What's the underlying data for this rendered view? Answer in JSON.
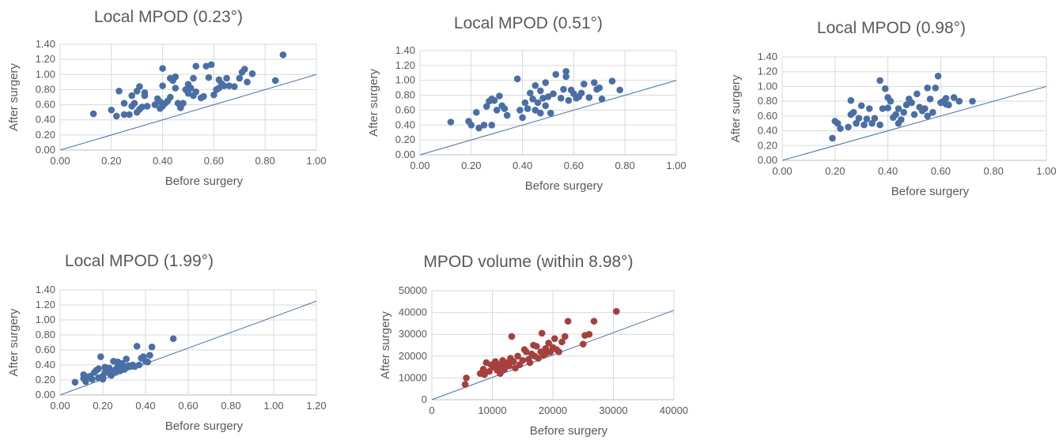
{
  "chart_data": [
    {
      "type": "scatter",
      "title": "Local MPOD (0.23°)",
      "xlabel": "Before surgery",
      "ylabel": "After surgery",
      "xlim": [
        0,
        1.0
      ],
      "ylim": [
        0,
        1.4
      ],
      "xticks": [
        0,
        0.2,
        0.4,
        0.6,
        0.8,
        1.0
      ],
      "yticks": [
        0,
        0.2,
        0.4,
        0.6,
        0.8,
        1.0,
        1.2,
        1.4
      ],
      "xtick_labels": [
        "0.00",
        "0.20",
        "0.40",
        "0.60",
        "0.80",
        "1.00"
      ],
      "ytick_labels": [
        "0.00",
        "0.20",
        "0.40",
        "0.60",
        "0.80",
        "1.00",
        "1.20",
        "1.40"
      ],
      "grid": true,
      "point_color": "#4a6fa5",
      "reference_line": [
        [
          0,
          0
        ],
        [
          1.0,
          1.0
        ]
      ],
      "points": [
        [
          0.13,
          0.48
        ],
        [
          0.2,
          0.53
        ],
        [
          0.22,
          0.45
        ],
        [
          0.23,
          0.78
        ],
        [
          0.25,
          0.62
        ],
        [
          0.25,
          0.47
        ],
        [
          0.27,
          0.47
        ],
        [
          0.28,
          0.72
        ],
        [
          0.28,
          0.58
        ],
        [
          0.29,
          0.62
        ],
        [
          0.3,
          0.5
        ],
        [
          0.3,
          0.78
        ],
        [
          0.31,
          0.54
        ],
        [
          0.31,
          0.84
        ],
        [
          0.32,
          0.57
        ],
        [
          0.33,
          0.72
        ],
        [
          0.33,
          0.76
        ],
        [
          0.34,
          0.58
        ],
        [
          0.37,
          0.6
        ],
        [
          0.38,
          0.68
        ],
        [
          0.39,
          0.64
        ],
        [
          0.39,
          0.55
        ],
        [
          0.4,
          0.85
        ],
        [
          0.4,
          1.08
        ],
        [
          0.4,
          0.58
        ],
        [
          0.41,
          0.62
        ],
        [
          0.42,
          0.65
        ],
        [
          0.43,
          0.7
        ],
        [
          0.43,
          0.95
        ],
        [
          0.44,
          0.92
        ],
        [
          0.45,
          0.97
        ],
        [
          0.45,
          0.82
        ],
        [
          0.46,
          0.62
        ],
        [
          0.47,
          0.56
        ],
        [
          0.48,
          0.62
        ],
        [
          0.49,
          0.8
        ],
        [
          0.5,
          0.87
        ],
        [
          0.5,
          0.75
        ],
        [
          0.51,
          0.82
        ],
        [
          0.52,
          0.72
        ],
        [
          0.52,
          0.95
        ],
        [
          0.53,
          1.11
        ],
        [
          0.53,
          0.77
        ],
        [
          0.55,
          0.69
        ],
        [
          0.56,
          0.71
        ],
        [
          0.57,
          1.11
        ],
        [
          0.58,
          0.96
        ],
        [
          0.59,
          1.13
        ],
        [
          0.6,
          0.73
        ],
        [
          0.61,
          0.8
        ],
        [
          0.62,
          0.82
        ],
        [
          0.62,
          0.93
        ],
        [
          0.63,
          0.88
        ],
        [
          0.64,
          0.85
        ],
        [
          0.65,
          0.95
        ],
        [
          0.66,
          0.85
        ],
        [
          0.68,
          0.84
        ],
        [
          0.7,
          0.95
        ],
        [
          0.71,
          1.03
        ],
        [
          0.72,
          1.07
        ],
        [
          0.73,
          0.9
        ],
        [
          0.75,
          1.01
        ],
        [
          0.84,
          0.92
        ],
        [
          0.87,
          1.26
        ]
      ]
    },
    {
      "type": "scatter",
      "title": "Local MPOD (0.51°)",
      "xlabel": "Before surgery",
      "ylabel": "After surgery",
      "xlim": [
        0,
        1.0
      ],
      "ylim": [
        0,
        1.4
      ],
      "xticks": [
        0,
        0.2,
        0.4,
        0.6,
        0.8,
        1.0
      ],
      "yticks": [
        0,
        0.2,
        0.4,
        0.6,
        0.8,
        1.0,
        1.2,
        1.4
      ],
      "xtick_labels": [
        "0.00",
        "0.20",
        "0.40",
        "0.60",
        "0.80",
        "1.00"
      ],
      "ytick_labels": [
        "0.00",
        "0.20",
        "0.40",
        "0.60",
        "0.80",
        "1.00",
        "1.20",
        "1.40"
      ],
      "grid": true,
      "point_color": "#4a6fa5",
      "reference_line": [
        [
          0,
          0
        ],
        [
          1.0,
          1.0
        ]
      ],
      "points": [
        [
          0.12,
          0.44
        ],
        [
          0.19,
          0.45
        ],
        [
          0.2,
          0.4
        ],
        [
          0.22,
          0.57
        ],
        [
          0.23,
          0.36
        ],
        [
          0.25,
          0.4
        ],
        [
          0.26,
          0.65
        ],
        [
          0.27,
          0.72
        ],
        [
          0.28,
          0.75
        ],
        [
          0.28,
          0.4
        ],
        [
          0.29,
          0.73
        ],
        [
          0.3,
          0.6
        ],
        [
          0.31,
          0.79
        ],
        [
          0.32,
          0.66
        ],
        [
          0.33,
          0.62
        ],
        [
          0.34,
          0.53
        ],
        [
          0.38,
          1.02
        ],
        [
          0.39,
          0.6
        ],
        [
          0.4,
          0.5
        ],
        [
          0.41,
          0.7
        ],
        [
          0.42,
          0.62
        ],
        [
          0.43,
          0.83
        ],
        [
          0.44,
          0.75
        ],
        [
          0.45,
          0.93
        ],
        [
          0.45,
          0.6
        ],
        [
          0.46,
          0.7
        ],
        [
          0.47,
          0.56
        ],
        [
          0.47,
          0.86
        ],
        [
          0.48,
          0.76
        ],
        [
          0.49,
          0.97
        ],
        [
          0.49,
          0.66
        ],
        [
          0.5,
          0.78
        ],
        [
          0.51,
          0.56
        ],
        [
          0.52,
          0.82
        ],
        [
          0.53,
          1.08
        ],
        [
          0.55,
          0.76
        ],
        [
          0.56,
          0.88
        ],
        [
          0.57,
          1.05
        ],
        [
          0.57,
          1.12
        ],
        [
          0.58,
          0.73
        ],
        [
          0.59,
          0.87
        ],
        [
          0.6,
          0.82
        ],
        [
          0.61,
          0.76
        ],
        [
          0.62,
          0.78
        ],
        [
          0.63,
          0.83
        ],
        [
          0.64,
          0.95
        ],
        [
          0.66,
          0.77
        ],
        [
          0.68,
          0.97
        ],
        [
          0.69,
          0.88
        ],
        [
          0.7,
          0.9
        ],
        [
          0.71,
          0.75
        ],
        [
          0.75,
          0.99
        ],
        [
          0.78,
          0.87
        ]
      ]
    },
    {
      "type": "scatter",
      "title": "Local MPOD (0.98°)",
      "xlabel": "Before surgery",
      "ylabel": "After surgery",
      "xlim": [
        0,
        1.0
      ],
      "ylim": [
        0,
        1.4
      ],
      "xticks": [
        0,
        0.2,
        0.4,
        0.6,
        0.8,
        1.0
      ],
      "yticks": [
        0,
        0.2,
        0.4,
        0.6,
        0.8,
        1.0,
        1.2,
        1.4
      ],
      "xtick_labels": [
        "0.00",
        "0.20",
        "0.40",
        "0.60",
        "0.80",
        "1.00"
      ],
      "ytick_labels": [
        "0.00",
        "0.20",
        "0.40",
        "0.60",
        "0.80",
        "1.00",
        "1.20",
        "1.40"
      ],
      "grid": true,
      "point_color": "#4a6fa5",
      "reference_line": [
        [
          0,
          0
        ],
        [
          1.0,
          1.0
        ]
      ],
      "points": [
        [
          0.19,
          0.3
        ],
        [
          0.2,
          0.53
        ],
        [
          0.21,
          0.5
        ],
        [
          0.22,
          0.43
        ],
        [
          0.25,
          0.45
        ],
        [
          0.26,
          0.81
        ],
        [
          0.26,
          0.62
        ],
        [
          0.27,
          0.65
        ],
        [
          0.28,
          0.5
        ],
        [
          0.29,
          0.57
        ],
        [
          0.3,
          0.74
        ],
        [
          0.31,
          0.48
        ],
        [
          0.32,
          0.56
        ],
        [
          0.33,
          0.7
        ],
        [
          0.34,
          0.5
        ],
        [
          0.35,
          0.57
        ],
        [
          0.37,
          0.48
        ],
        [
          0.37,
          1.08
        ],
        [
          0.38,
          0.7
        ],
        [
          0.39,
          0.97
        ],
        [
          0.4,
          0.71
        ],
        [
          0.4,
          0.85
        ],
        [
          0.41,
          0.8
        ],
        [
          0.42,
          0.58
        ],
        [
          0.43,
          0.62
        ],
        [
          0.44,
          0.5
        ],
        [
          0.44,
          0.7
        ],
        [
          0.45,
          0.55
        ],
        [
          0.46,
          0.65
        ],
        [
          0.47,
          0.75
        ],
        [
          0.48,
          0.83
        ],
        [
          0.49,
          0.78
        ],
        [
          0.5,
          0.62
        ],
        [
          0.51,
          0.9
        ],
        [
          0.52,
          0.72
        ],
        [
          0.53,
          0.67
        ],
        [
          0.54,
          0.7
        ],
        [
          0.55,
          0.98
        ],
        [
          0.55,
          0.6
        ],
        [
          0.56,
          0.83
        ],
        [
          0.57,
          0.65
        ],
        [
          0.58,
          0.98
        ],
        [
          0.59,
          1.14
        ],
        [
          0.6,
          0.78
        ],
        [
          0.61,
          0.8
        ],
        [
          0.62,
          0.76
        ],
        [
          0.62,
          0.84
        ],
        [
          0.63,
          0.75
        ],
        [
          0.65,
          0.85
        ],
        [
          0.67,
          0.8
        ],
        [
          0.72,
          0.8
        ]
      ]
    },
    {
      "type": "scatter",
      "title": "Local MPOD (1.99°)",
      "xlabel": "Before surgery",
      "ylabel": "After surgery",
      "xlim": [
        0,
        1.2
      ],
      "ylim": [
        0,
        1.4
      ],
      "xticks": [
        0,
        0.2,
        0.4,
        0.6,
        0.8,
        1.0,
        1.2
      ],
      "yticks": [
        0,
        0.2,
        0.4,
        0.6,
        0.8,
        1.0,
        1.2,
        1.4
      ],
      "xtick_labels": [
        "0.00",
        "0.20",
        "0.40",
        "0.60",
        "0.80",
        "1.00",
        "1.20"
      ],
      "ytick_labels": [
        "0.00",
        "0.20",
        "0.40",
        "0.60",
        "0.80",
        "1.00",
        "1.20",
        "1.40"
      ],
      "grid": true,
      "point_color": "#4a6fa5",
      "reference_line": [
        [
          0,
          0
        ],
        [
          1.2,
          1.25
        ]
      ],
      "points": [
        [
          0.07,
          0.17
        ],
        [
          0.11,
          0.27
        ],
        [
          0.11,
          0.22
        ],
        [
          0.12,
          0.18
        ],
        [
          0.13,
          0.24
        ],
        [
          0.14,
          0.25
        ],
        [
          0.15,
          0.21
        ],
        [
          0.16,
          0.3
        ],
        [
          0.17,
          0.33
        ],
        [
          0.18,
          0.23
        ],
        [
          0.18,
          0.35
        ],
        [
          0.19,
          0.51
        ],
        [
          0.2,
          0.25
        ],
        [
          0.2,
          0.21
        ],
        [
          0.21,
          0.3
        ],
        [
          0.21,
          0.37
        ],
        [
          0.22,
          0.33
        ],
        [
          0.23,
          0.36
        ],
        [
          0.23,
          0.29
        ],
        [
          0.24,
          0.26
        ],
        [
          0.25,
          0.45
        ],
        [
          0.25,
          0.32
        ],
        [
          0.26,
          0.34
        ],
        [
          0.26,
          0.3
        ],
        [
          0.27,
          0.38
        ],
        [
          0.27,
          0.44
        ],
        [
          0.28,
          0.41
        ],
        [
          0.28,
          0.32
        ],
        [
          0.29,
          0.36
        ],
        [
          0.29,
          0.42
        ],
        [
          0.3,
          0.34
        ],
        [
          0.31,
          0.37
        ],
        [
          0.31,
          0.48
        ],
        [
          0.32,
          0.39
        ],
        [
          0.33,
          0.38
        ],
        [
          0.34,
          0.4
        ],
        [
          0.35,
          0.38
        ],
        [
          0.36,
          0.65
        ],
        [
          0.37,
          0.4
        ],
        [
          0.38,
          0.49
        ],
        [
          0.39,
          0.51
        ],
        [
          0.4,
          0.45
        ],
        [
          0.41,
          0.44
        ],
        [
          0.42,
          0.53
        ],
        [
          0.43,
          0.64
        ],
        [
          0.53,
          0.75
        ]
      ]
    },
    {
      "type": "scatter",
      "title": "MPOD volume (within 8.98°)",
      "xlabel": "Before surgery",
      "ylabel": "After surgery",
      "xlim": [
        0,
        40000
      ],
      "ylim": [
        0,
        50000
      ],
      "xticks": [
        0,
        10000,
        20000,
        30000,
        40000
      ],
      "yticks": [
        0,
        10000,
        20000,
        30000,
        40000,
        50000
      ],
      "xtick_labels": [
        "0",
        "10000",
        "20000",
        "30000",
        "40000"
      ],
      "ytick_labels": [
        "0",
        "10000",
        "20000",
        "30000",
        "40000",
        "50000"
      ],
      "grid": true,
      "point_color": "#a5403d",
      "reference_line": [
        [
          0,
          0
        ],
        [
          40000,
          41000
        ]
      ],
      "points": [
        [
          5500,
          7000
        ],
        [
          5700,
          10000
        ],
        [
          8000,
          12000
        ],
        [
          8500,
          14000
        ],
        [
          8700,
          11500
        ],
        [
          9000,
          17000
        ],
        [
          9500,
          13000
        ],
        [
          9800,
          16000
        ],
        [
          10200,
          15000
        ],
        [
          10500,
          17500
        ],
        [
          10800,
          13500
        ],
        [
          11000,
          16000
        ],
        [
          11300,
          12000
        ],
        [
          11500,
          15000
        ],
        [
          11700,
          18000
        ],
        [
          12000,
          14000
        ],
        [
          12300,
          16500
        ],
        [
          12500,
          17000
        ],
        [
          12800,
          15500
        ],
        [
          13000,
          19000
        ],
        [
          13200,
          29000
        ],
        [
          13500,
          17500
        ],
        [
          13800,
          14500
        ],
        [
          14200,
          20000
        ],
        [
          14500,
          16000
        ],
        [
          15000,
          18000
        ],
        [
          15300,
          23000
        ],
        [
          15600,
          22000
        ],
        [
          16000,
          18500
        ],
        [
          16200,
          17000
        ],
        [
          16500,
          21000
        ],
        [
          16800,
          25000
        ],
        [
          17000,
          20000
        ],
        [
          17300,
          24500
        ],
        [
          17600,
          19000
        ],
        [
          18000,
          22000
        ],
        [
          18200,
          30500
        ],
        [
          18500,
          20500
        ],
        [
          18800,
          23500
        ],
        [
          19000,
          21500
        ],
        [
          19300,
          26000
        ],
        [
          19600,
          22000
        ],
        [
          20000,
          24000
        ],
        [
          20300,
          28000
        ],
        [
          20600,
          23000
        ],
        [
          21000,
          22000
        ],
        [
          21500,
          26500
        ],
        [
          22000,
          29000
        ],
        [
          22500,
          36000
        ],
        [
          25000,
          25500
        ],
        [
          25300,
          29500
        ],
        [
          26000,
          30000
        ],
        [
          26800,
          36000
        ],
        [
          30500,
          40500
        ]
      ]
    }
  ]
}
